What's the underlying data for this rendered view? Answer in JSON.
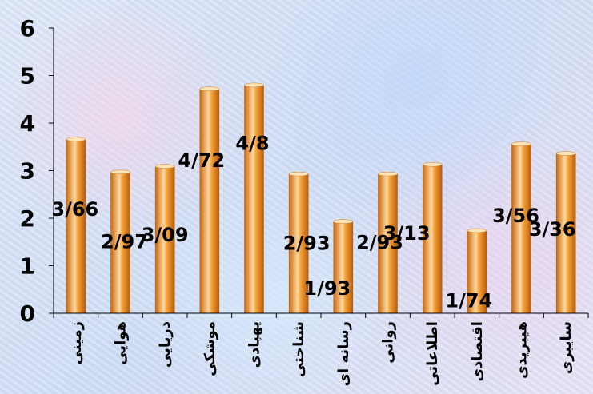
{
  "chart_data": {
    "type": "bar",
    "categories": [
      "زمینی",
      "هوایی",
      "دریایی",
      "موشکی",
      "پهپادی",
      "شناختی",
      "رسانه ای",
      "روانی",
      "اطلاعاتی",
      "اقتصادی",
      "هیبریدی",
      "سایبری"
    ],
    "values": [
      3.66,
      2.97,
      3.09,
      4.72,
      4.8,
      2.93,
      1.93,
      2.93,
      3.13,
      1.74,
      3.56,
      3.36
    ],
    "data_labels": [
      "3/66",
      "2/97",
      "3/09",
      "4/72",
      "4/8",
      "2/93",
      "1/93",
      "2/93",
      "3/13",
      "1/74",
      "3/56",
      "3/36"
    ],
    "y_ticks": [
      "0",
      "1",
      "2",
      "3",
      "4",
      "5",
      "6"
    ],
    "ylim": [
      0,
      6
    ],
    "title": "",
    "xlabel": "",
    "ylabel": "",
    "grid": false,
    "legend": "none",
    "colors": {
      "bar_light": "#ffd9a0",
      "bar_mid": "#f7a33c",
      "bar_dark": "#c96a10",
      "axis": "#000000"
    }
  }
}
